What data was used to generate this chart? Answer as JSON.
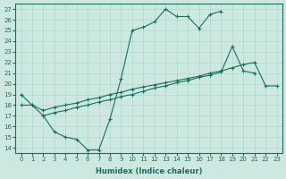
{
  "xlabel": "Humidex (Indice chaleur)",
  "xlim": [
    -0.5,
    23.5
  ],
  "ylim": [
    13.5,
    27.5
  ],
  "xticks": [
    0,
    1,
    2,
    3,
    4,
    5,
    6,
    7,
    8,
    9,
    10,
    11,
    12,
    13,
    14,
    15,
    16,
    17,
    18,
    19,
    20,
    21,
    22,
    23
  ],
  "yticks": [
    14,
    15,
    16,
    17,
    18,
    19,
    20,
    21,
    22,
    23,
    24,
    25,
    26,
    27
  ],
  "bg_color": "#cce8e0",
  "line_color": "#1a6e60",
  "grid_color": "#b0d8cc",
  "line1_x": [
    0,
    1,
    2,
    3,
    4,
    5,
    6,
    7,
    8,
    9,
    10,
    11,
    12,
    13,
    14,
    15,
    16,
    17,
    18
  ],
  "line1_y": [
    19.0,
    18.0,
    17.0,
    15.5,
    15.0,
    14.8,
    13.8,
    13.8,
    16.7,
    20.5,
    25.0,
    25.3,
    25.8,
    27.0,
    26.3,
    26.3,
    25.2,
    26.5,
    26.8
  ],
  "line2_x": [
    0,
    1,
    2,
    3,
    4,
    5,
    6,
    7,
    8,
    9,
    10,
    11,
    12,
    13,
    14,
    15,
    16,
    17,
    18,
    19,
    20,
    21,
    22,
    23
  ],
  "line2_y": [
    18.0,
    18.0,
    17.5,
    17.8,
    18.0,
    18.2,
    18.5,
    18.7,
    19.0,
    19.2,
    19.5,
    19.7,
    19.9,
    20.1,
    20.3,
    20.5,
    20.7,
    21.0,
    21.2,
    21.5,
    21.8,
    22.0,
    19.8,
    19.8
  ],
  "line3_x": [
    2,
    3,
    4,
    5,
    6,
    7,
    8,
    9,
    10,
    11,
    12,
    13,
    14,
    15,
    16,
    17,
    18,
    19,
    20,
    21
  ],
  "line3_y": [
    17.0,
    17.3,
    17.5,
    17.8,
    18.0,
    18.3,
    18.5,
    18.8,
    19.0,
    19.3,
    19.6,
    19.8,
    20.1,
    20.3,
    20.6,
    20.8,
    21.1,
    23.5,
    21.2,
    21.0
  ]
}
